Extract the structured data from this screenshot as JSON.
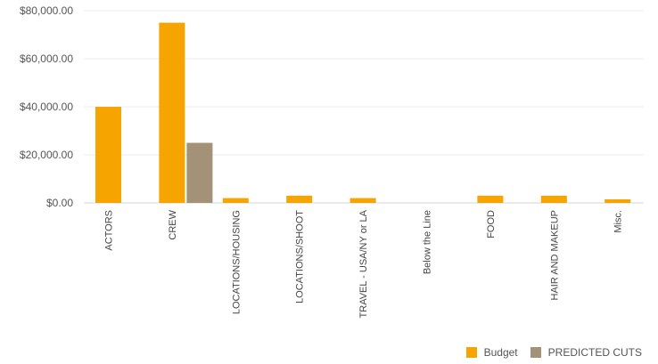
{
  "chart_data": {
    "type": "bar",
    "categories": [
      "ACTORS",
      "CREW",
      "LOCATIONS/HOUSING",
      "LOCATIONS/SHOOT",
      "TRAVEL - USA/NY or LA",
      "Below the Line",
      "FOOD",
      "HAIR AND MAKEUP",
      "Misc."
    ],
    "series": [
      {
        "name": "Budget",
        "color": "#f5a400",
        "values": [
          40000,
          75000,
          2000,
          3000,
          2000,
          0,
          3000,
          3000,
          1500
        ]
      },
      {
        "name": "PREDICTED CUTS",
        "color": "#a39178",
        "values": [
          0,
          25000,
          0,
          0,
          0,
          0,
          0,
          0,
          0
        ]
      }
    ],
    "ylim": [
      0,
      80000
    ],
    "yticks": [
      0,
      20000,
      40000,
      60000,
      80000
    ],
    "ytick_labels": [
      "$0.00",
      "$20,000.00",
      "$40,000.00",
      "$60,000.00",
      "$80,000.00"
    ],
    "grid": true,
    "legend_position": "bottom-right"
  }
}
